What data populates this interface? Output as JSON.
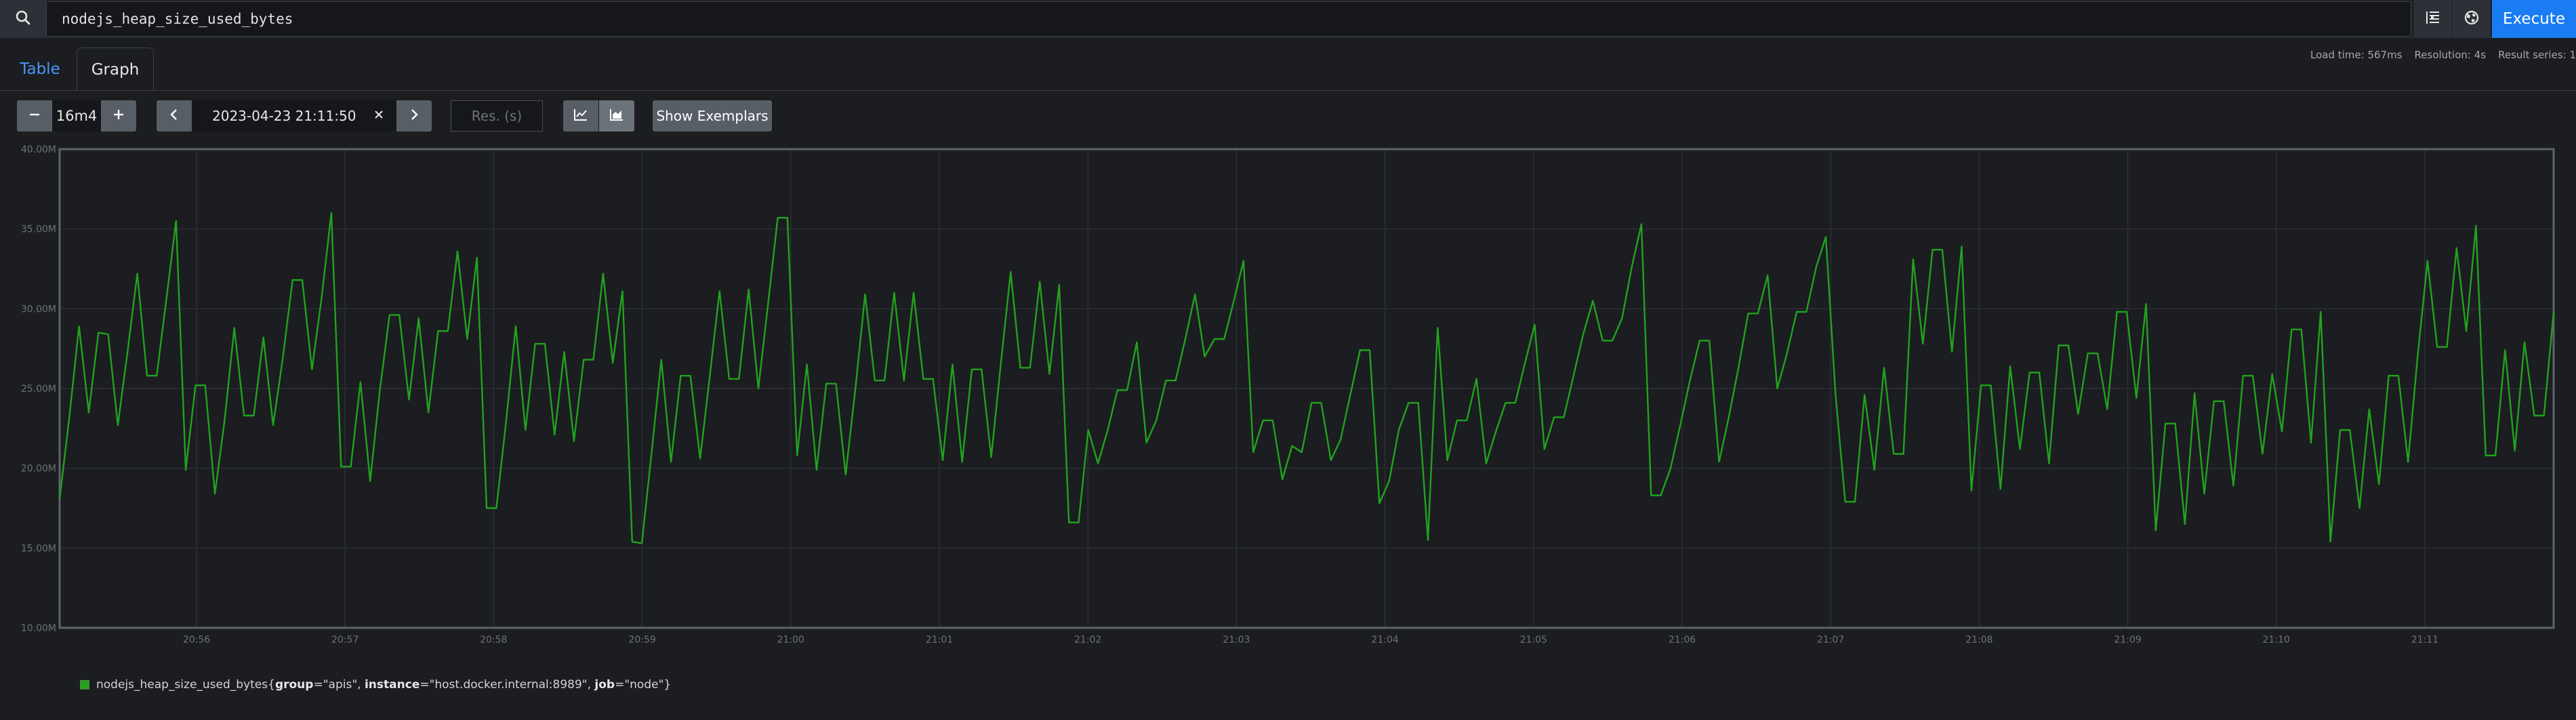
{
  "query": {
    "expression": "nodejs_heap_size_used_bytes",
    "execute_label": "Execute",
    "icons": [
      "search-icon",
      "metrics-explorer-icon",
      "globe-icon"
    ]
  },
  "tabs": [
    {
      "label": "Table",
      "active": false
    },
    {
      "label": "Graph",
      "active": true
    }
  ],
  "stats": {
    "load_time": "Load time: 567ms",
    "resolution": "Resolution: 4s",
    "result_series": "Result series: 1"
  },
  "controls": {
    "range_value": "16m4",
    "end_time": "2023-04-23 21:11:50",
    "resolution_placeholder": "Res. (s)",
    "show_exemplars_label": "Show Exemplars"
  },
  "colors": {
    "series": "#21a31c",
    "execute": "#1a7cf3",
    "active_tab_text": "#4b97f6"
  },
  "legend": {
    "metric": "nodejs_heap_size_used_bytes{",
    "group_key": "group",
    "group_val": "=\"apis\", ",
    "instance_key": "instance",
    "instance_val": "=\"host.docker.internal:8989\", ",
    "job_key": "job",
    "job_val": "=\"node\"}"
  },
  "chart_data": {
    "type": "line",
    "ylim": [
      10000000,
      40000000
    ],
    "y_ticks": [
      "10.00M",
      "15.00M",
      "20.00M",
      "25.00M",
      "30.00M",
      "35.00M",
      "40.00M"
    ],
    "x_tick_labels": [
      "20:56",
      "20:57",
      "20:58",
      "20:59",
      "21:00",
      "21:01",
      "21:02",
      "21:03",
      "21:04",
      "21:05",
      "21:06",
      "21:07",
      "21:08",
      "21:09",
      "21:10",
      "21:11"
    ],
    "grid": true,
    "series": [
      {
        "name": "nodejs_heap_size_used_bytes{group=\"apis\", instance=\"host.docker.internal:8989\", job=\"node\"}",
        "color": "#21a31c",
        "values": [
          18.1,
          23.2,
          28.9,
          23.5,
          28.5,
          28.4,
          22.7,
          27.3,
          32.2,
          25.8,
          25.8,
          30.6,
          35.5,
          19.9,
          25.2,
          25.2,
          18.4,
          23.0,
          28.8,
          23.3,
          23.3,
          28.2,
          22.7,
          26.9,
          31.8,
          31.8,
          26.2,
          30.7,
          36.0,
          20.1,
          20.1,
          25.4,
          19.2,
          24.9,
          29.6,
          29.6,
          24.3,
          29.4,
          23.5,
          28.6,
          28.6,
          33.6,
          28.1,
          33.2,
          17.5,
          17.5,
          22.9,
          28.9,
          22.4,
          27.8,
          27.8,
          22.1,
          27.3,
          21.7,
          26.8,
          26.8,
          32.2,
          26.6,
          31.1,
          15.4,
          15.3,
          21.0,
          26.8,
          20.4,
          25.8,
          25.8,
          20.6,
          25.8,
          31.1,
          25.6,
          25.6,
          31.2,
          25.0,
          30.3,
          35.7,
          35.7,
          20.8,
          26.5,
          19.9,
          25.3,
          25.3,
          19.6,
          25.0,
          30.9,
          25.5,
          25.5,
          31.0,
          25.5,
          31.0,
          25.6,
          25.6,
          20.5,
          26.5,
          20.4,
          26.2,
          26.2,
          20.7,
          26.6,
          32.3,
          26.3,
          26.3,
          31.7,
          25.9,
          31.5,
          16.6,
          16.6,
          22.4,
          20.3,
          22.4,
          24.9,
          24.9,
          27.9,
          21.6,
          23.0,
          25.5,
          25.5,
          28.1,
          30.9,
          27.0,
          28.1,
          28.1,
          30.5,
          33.0,
          21.0,
          23.0,
          23.0,
          19.3,
          21.4,
          21.0,
          24.1,
          24.1,
          20.5,
          21.8,
          24.6,
          27.4,
          27.4,
          17.8,
          19.2,
          22.4,
          24.1,
          24.1,
          15.5,
          28.8,
          20.5,
          23.0,
          23.0,
          25.6,
          20.3,
          22.3,
          24.1,
          24.1,
          26.6,
          29.0,
          21.2,
          23.2,
          23.2,
          25.8,
          28.4,
          30.5,
          28.0,
          28.0,
          29.4,
          32.6,
          35.3,
          18.3,
          18.3,
          20.0,
          22.7,
          25.5,
          28.0,
          28.0,
          20.4,
          23.2,
          26.3,
          29.7,
          29.7,
          32.1,
          25.0,
          27.2,
          29.8,
          29.8,
          32.6,
          34.5,
          24.6,
          17.9,
          17.9,
          24.6,
          19.9,
          26.3,
          20.9,
          20.9,
          33.1,
          27.8,
          33.7,
          33.7,
          27.3,
          33.9,
          18.6,
          25.2,
          25.2,
          18.7,
          26.4,
          21.2,
          26.0,
          26.0,
          20.3,
          27.7,
          27.7,
          23.4,
          27.2,
          27.2,
          23.7,
          29.8,
          29.8,
          24.4,
          30.3,
          16.1,
          22.8,
          22.8,
          16.5,
          24.7,
          18.4,
          24.2,
          24.2,
          18.9,
          25.8,
          25.8,
          20.9,
          25.9,
          22.3,
          28.7,
          28.7,
          21.6,
          29.8,
          15.4,
          22.4,
          22.4,
          17.5,
          23.7,
          19.0,
          25.8,
          25.8,
          20.4,
          27.1,
          33.0,
          27.6,
          27.6,
          33.8,
          28.6,
          35.2,
          20.8,
          20.8,
          27.4,
          21.1,
          27.9,
          23.3,
          23.3,
          29.8
        ]
      }
    ]
  }
}
